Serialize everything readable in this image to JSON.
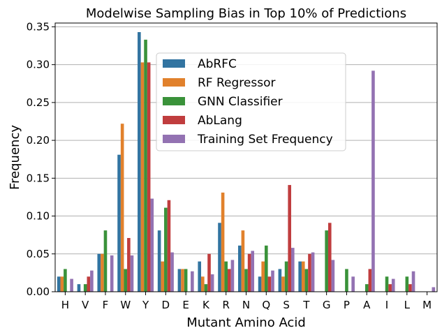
{
  "chart_data": {
    "type": "bar",
    "title": "Modelwise Sampling Bias in Top 10% of Predictions",
    "xlabel": "Mutant Amino Acid",
    "ylabel": "Frequency",
    "ylim": [
      0,
      0.355
    ],
    "yticks": [
      "0.00",
      "0.05",
      "0.10",
      "0.15",
      "0.20",
      "0.25",
      "0.30",
      "0.35"
    ],
    "grid": "horizontal",
    "legend_position": "upper-center",
    "categories": [
      "H",
      "V",
      "F",
      "W",
      "Y",
      "D",
      "E",
      "K",
      "R",
      "N",
      "Q",
      "S",
      "T",
      "G",
      "P",
      "A",
      "I",
      "L",
      "M"
    ],
    "series": [
      {
        "name": "AbRFC",
        "color": "#3274a1",
        "values": [
          0.02,
          0.01,
          0.05,
          0.181,
          0.343,
          0.081,
          0.03,
          0.04,
          0.091,
          0.061,
          0.02,
          0.03,
          0.04,
          0.0,
          0.0,
          0.0,
          0.0,
          0.0,
          0.0
        ]
      },
      {
        "name": "RF Regressor",
        "color": "#e1812c",
        "values": [
          0.02,
          0.0,
          0.05,
          0.222,
          0.303,
          0.04,
          0.03,
          0.02,
          0.131,
          0.081,
          0.04,
          0.02,
          0.04,
          0.0,
          0.0,
          0.0,
          0.0,
          0.0,
          0.0
        ]
      },
      {
        "name": "GNN Classifier",
        "color": "#3a923a",
        "values": [
          0.03,
          0.01,
          0.081,
          0.03,
          0.333,
          0.111,
          0.03,
          0.01,
          0.04,
          0.03,
          0.061,
          0.04,
          0.03,
          0.081,
          0.03,
          0.01,
          0.02,
          0.02,
          0.0
        ]
      },
      {
        "name": "AbLang",
        "color": "#c03d3e",
        "values": [
          0.0,
          0.02,
          0.0,
          0.071,
          0.303,
          0.121,
          0.0,
          0.05,
          0.03,
          0.05,
          0.02,
          0.141,
          0.05,
          0.091,
          0.0,
          0.03,
          0.01,
          0.01,
          0.0
        ]
      },
      {
        "name": "Training Set Frequency",
        "color": "#9372b2",
        "values": [
          0.017,
          0.028,
          0.048,
          0.048,
          0.123,
          0.052,
          0.027,
          0.023,
          0.042,
          0.054,
          0.028,
          0.058,
          0.052,
          0.042,
          0.02,
          0.292,
          0.017,
          0.027,
          0.006
        ]
      }
    ]
  }
}
